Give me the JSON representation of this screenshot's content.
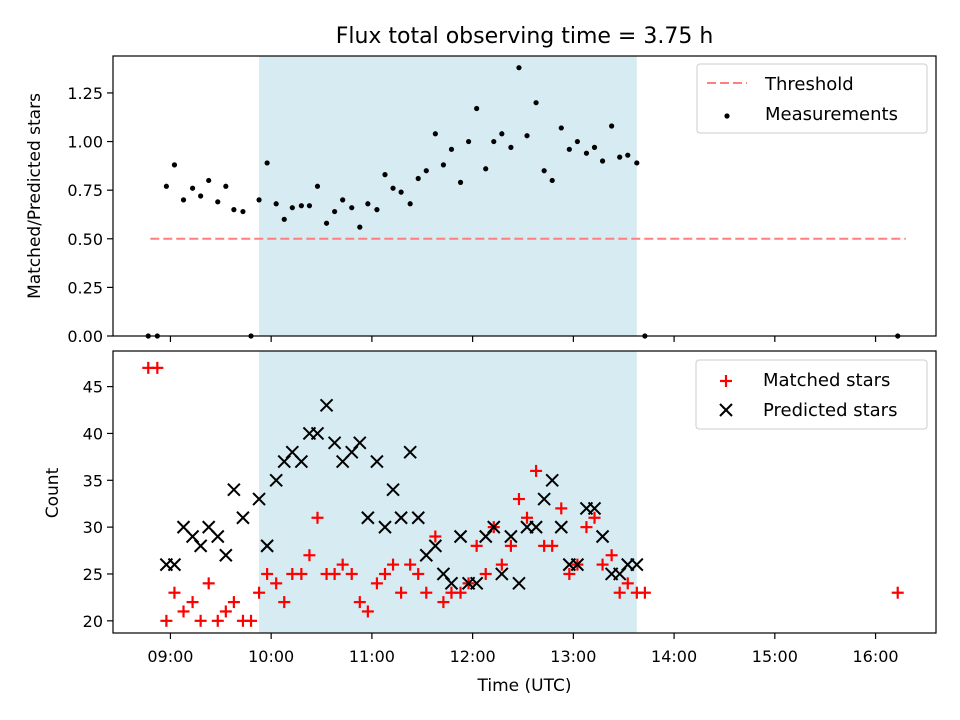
{
  "chart_data": [
    {
      "type": "scatter",
      "title": "Flux total observing time = 3.75 h",
      "xlabel": "",
      "ylabel": "Matched/Predicted stars",
      "ylim": [
        0,
        1.44
      ],
      "yticks": [
        "0.00",
        "0.25",
        "0.50",
        "0.75",
        "1.00",
        "1.25"
      ],
      "ytick_values": [
        0,
        0.25,
        0.5,
        0.75,
        1.0,
        1.25
      ],
      "x_unit": "hours UTC",
      "xlim": [
        8.43,
        16.6
      ],
      "xtick_values": [
        9,
        10,
        11,
        12,
        13,
        14,
        15,
        16
      ],
      "shaded_span": [
        9.88,
        13.63
      ],
      "legend_position": "upper right",
      "series": [
        {
          "name": "Threshold",
          "style": "dashed-line",
          "color": "#ff7f7f",
          "x": [
            8.8,
            16.3
          ],
          "y": [
            0.5,
            0.5
          ]
        },
        {
          "name": "Measurements",
          "style": "dot",
          "color": "#000000",
          "x": [
            8.78,
            8.87,
            8.96,
            9.04,
            9.13,
            9.22,
            9.3,
            9.38,
            9.47,
            9.55,
            9.63,
            9.72,
            9.8,
            9.88,
            9.96,
            10.05,
            10.13,
            10.21,
            10.3,
            10.38,
            10.46,
            10.55,
            10.63,
            10.71,
            10.8,
            10.88,
            10.96,
            11.05,
            11.13,
            11.21,
            11.29,
            11.38,
            11.46,
            11.54,
            11.63,
            11.71,
            11.79,
            11.88,
            11.96,
            12.04,
            12.13,
            12.21,
            12.29,
            12.38,
            12.46,
            12.54,
            12.63,
            12.71,
            12.79,
            12.88,
            12.96,
            13.04,
            13.13,
            13.21,
            13.29,
            13.38,
            13.46,
            13.54,
            13.63,
            13.71,
            16.22
          ],
          "y": [
            0.0,
            0.0,
            0.77,
            0.88,
            0.7,
            0.76,
            0.72,
            0.8,
            0.69,
            0.77,
            0.65,
            0.64,
            0.0,
            0.7,
            0.89,
            0.68,
            0.6,
            0.66,
            0.67,
            0.67,
            0.77,
            0.58,
            0.64,
            0.7,
            0.66,
            0.56,
            0.68,
            0.65,
            0.83,
            0.76,
            0.74,
            0.68,
            0.81,
            0.85,
            1.04,
            0.88,
            0.96,
            0.79,
            1.0,
            1.17,
            0.86,
            1.0,
            1.04,
            0.97,
            1.38,
            1.03,
            1.2,
            0.85,
            0.8,
            1.07,
            0.96,
            1.0,
            0.94,
            0.97,
            0.9,
            1.08,
            0.92,
            0.93,
            0.89,
            0.0,
            0.0
          ]
        }
      ]
    },
    {
      "type": "scatter",
      "title": "",
      "xlabel": "Time (UTC)",
      "ylabel": "Count",
      "ylim": [
        18.7,
        48.8
      ],
      "yticks": [
        "20",
        "25",
        "30",
        "35",
        "40",
        "45"
      ],
      "ytick_values": [
        20,
        25,
        30,
        35,
        40,
        45
      ],
      "x_unit": "hours UTC",
      "xlim": [
        8.43,
        16.6
      ],
      "xticks": [
        "09:00",
        "10:00",
        "11:00",
        "12:00",
        "13:00",
        "14:00",
        "15:00",
        "16:00"
      ],
      "xtick_values": [
        9,
        10,
        11,
        12,
        13,
        14,
        15,
        16
      ],
      "shaded_span": [
        9.88,
        13.63
      ],
      "legend_position": "upper right",
      "series": [
        {
          "name": "Matched stars",
          "style": "plus",
          "color": "#ff0000",
          "x": [
            8.78,
            8.87,
            8.96,
            9.04,
            9.13,
            9.22,
            9.3,
            9.38,
            9.47,
            9.55,
            9.63,
            9.72,
            9.8,
            9.88,
            9.96,
            10.05,
            10.13,
            10.21,
            10.3,
            10.38,
            10.46,
            10.55,
            10.63,
            10.71,
            10.8,
            10.88,
            10.96,
            11.05,
            11.13,
            11.21,
            11.29,
            11.38,
            11.46,
            11.54,
            11.63,
            11.71,
            11.79,
            11.88,
            11.96,
            12.04,
            12.13,
            12.21,
            12.29,
            12.38,
            12.46,
            12.54,
            12.63,
            12.71,
            12.79,
            12.88,
            12.96,
            13.04,
            13.13,
            13.21,
            13.29,
            13.38,
            13.46,
            13.54,
            13.63,
            13.71,
            16.22
          ],
          "y": [
            47,
            47,
            20,
            23,
            21,
            22,
            20,
            24,
            20,
            21,
            22,
            20,
            20,
            23,
            25,
            24,
            22,
            25,
            25,
            27,
            31,
            25,
            25,
            26,
            25,
            22,
            21,
            24,
            25,
            26,
            23,
            26,
            25,
            23,
            29,
            22,
            23,
            23,
            24,
            28,
            25,
            30,
            26,
            28,
            33,
            31,
            36,
            28,
            28,
            32,
            25,
            26,
            30,
            31,
            26,
            27,
            23,
            24,
            23,
            23,
            23
          ]
        },
        {
          "name": "Predicted stars",
          "style": "x",
          "color": "#000000",
          "x": [
            8.96,
            9.04,
            9.13,
            9.22,
            9.3,
            9.38,
            9.47,
            9.55,
            9.63,
            9.72,
            9.88,
            9.96,
            10.05,
            10.13,
            10.21,
            10.3,
            10.38,
            10.46,
            10.55,
            10.63,
            10.71,
            10.8,
            10.88,
            10.96,
            11.05,
            11.13,
            11.21,
            11.29,
            11.38,
            11.46,
            11.54,
            11.63,
            11.71,
            11.79,
            11.88,
            11.96,
            12.04,
            12.13,
            12.21,
            12.29,
            12.38,
            12.46,
            12.54,
            12.63,
            12.71,
            12.79,
            12.88,
            12.96,
            13.04,
            13.13,
            13.21,
            13.29,
            13.38,
            13.46,
            13.54,
            13.63
          ],
          "y": [
            26,
            26,
            30,
            29,
            28,
            30,
            29,
            27,
            34,
            31,
            33,
            28,
            35,
            37,
            38,
            37,
            40,
            40,
            43,
            39,
            37,
            38,
            39,
            31,
            37,
            30,
            34,
            31,
            38,
            31,
            27,
            28,
            25,
            24,
            29,
            24,
            24,
            29,
            30,
            25,
            29,
            24,
            30,
            30,
            33,
            35,
            30,
            26,
            26,
            32,
            32,
            29,
            25,
            25,
            26,
            26
          ]
        }
      ]
    }
  ]
}
